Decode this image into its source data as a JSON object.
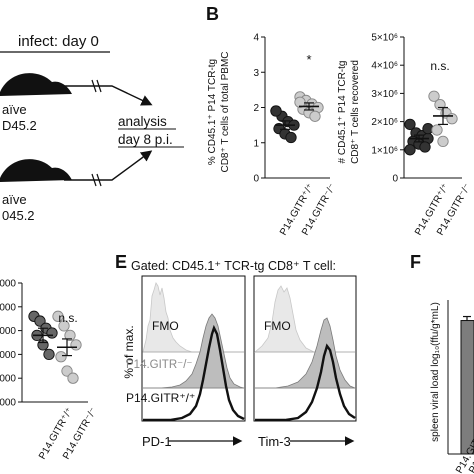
{
  "panel_a": {
    "infect_label": "infect: day 0",
    "mouse1_line1": "aïve",
    "mouse1_line2": "D45.2",
    "mouse2_line1": "aïve",
    "mouse2_line2": "045.2",
    "analysis_line1": "analysis",
    "analysis_line2": "day 8 p.i."
  },
  "panel_b": {
    "letter": "B",
    "left": {
      "ylabel_line1": "% CD45.1⁺ P14 TCR-tg",
      "ylabel_line2": "CD8⁺ T cells of total PBMC",
      "yticks": [
        "0",
        "1",
        "2",
        "3",
        "4"
      ],
      "categories": [
        "P14.GITR⁺/⁺",
        "P14.GITR⁻/⁻"
      ],
      "significance": "*"
    },
    "right": {
      "ylabel_line1": "# CD45.1⁺ P14 TCR-tg",
      "ylabel_line2": "CD8⁺ T cells recovered",
      "yticks": [
        "0",
        "1×10⁶",
        "2×10⁶",
        "3×10⁶",
        "4×10⁶",
        "5×10⁶"
      ],
      "categories": [
        "P14.GITR⁺/⁺",
        "P14.GITR⁻/⁻"
      ],
      "significance": "n.s."
    }
  },
  "panel_d": {
    "yticks": [
      "000",
      "000",
      "000",
      "000",
      "000",
      "000"
    ],
    "categories": [
      "P14.GITR⁺/⁺",
      "P14.GITR⁻/⁻"
    ],
    "significance": "n.s."
  },
  "panel_e": {
    "letter": "E",
    "gate_title": "Gated: CD45.1⁺ TCR-tg CD8⁺ T cell:",
    "ylabel": "% of max.",
    "left_xlabel": "PD-1",
    "right_xlabel": "Tim-3",
    "legend_fmo": "FMO",
    "legend_ko": "P14.GITR⁻/⁻",
    "legend_wt": "P14.GITR⁺/⁺"
  },
  "panel_f": {
    "letter": "F",
    "ylabel": "spleen viral load log₁₀(ffu/g*mL)",
    "categories": [
      "P14.GITR⁺/⁺",
      "P1"
    ]
  },
  "chart_data": [
    {
      "type": "scatter",
      "panel": "B-left",
      "ylabel": "% CD45.1⁺ P14 TCR-tg CD8⁺ T cells of total PBMC",
      "ylim": [
        0,
        4
      ],
      "categories": [
        "P14.GITR⁺/⁺",
        "P14.GITR⁻/⁻"
      ],
      "series": [
        {
          "name": "P14.GITR⁺/⁺",
          "color": "#333333",
          "values": [
            1.9,
            1.75,
            1.6,
            1.5,
            1.4,
            1.25,
            1.15,
            1.9
          ],
          "mean": 1.5,
          "sem": 0.12
        },
        {
          "name": "P14.GITR⁻/⁻",
          "color": "#cccccc",
          "values": [
            2.3,
            2.2,
            2.1,
            2.0,
            1.95,
            1.85,
            1.75,
            2.15
          ],
          "mean": 2.03,
          "sem": 0.1
        }
      ],
      "annotations": [
        "*"
      ]
    },
    {
      "type": "scatter",
      "panel": "B-right",
      "ylabel": "# CD45.1⁺ P14 TCR-tg CD8⁺ T cells recovered",
      "ylim": [
        0,
        5000000
      ],
      "categories": [
        "P14.GITR⁺/⁺",
        "P14.GITR⁻/⁻"
      ],
      "series": [
        {
          "name": "P14.GITR⁺/⁺",
          "color": "#333333",
          "values": [
            1900000,
            1600000,
            1500000,
            1400000,
            1300000,
            1200000,
            1100000,
            1000000,
            1750000
          ],
          "mean": 1400000,
          "sem": 120000
        },
        {
          "name": "P14.GITR⁻/⁻",
          "color": "#cccccc",
          "values": [
            2900000,
            2600000,
            2300000,
            2100000,
            1700000,
            1300000
          ],
          "mean": 2200000,
          "sem": 300000
        }
      ],
      "annotations": [
        "n.s."
      ]
    },
    {
      "type": "scatter",
      "panel": "D",
      "categories": [
        "P14.GITR⁺/⁺",
        "P14.GITR⁻/⁻"
      ],
      "yticks": [
        "000",
        "000",
        "000",
        "000",
        "000",
        "000"
      ],
      "series": [
        {
          "name": "P14.GITR⁺/⁺",
          "color": "#666666",
          "values": [
            3.6,
            3.4,
            3.1,
            2.9,
            2.8,
            2.4,
            2.0
          ],
          "mean": 2.8,
          "sem": 0.3
        },
        {
          "name": "P14.GITR⁻/⁻",
          "color": "#cccccc",
          "values": [
            3.6,
            3.2,
            2.8,
            2.4,
            1.9,
            1.3,
            1.0
          ],
          "mean": 2.3,
          "sem": 0.35
        }
      ],
      "annotations": [
        "n.s."
      ]
    },
    {
      "type": "bar",
      "panel": "F",
      "ylabel": "spleen viral load log₁₀(ffu/g*mL)",
      "categories": [
        "P14.GITR⁺/⁺"
      ],
      "values": [
        5.2
      ]
    }
  ]
}
